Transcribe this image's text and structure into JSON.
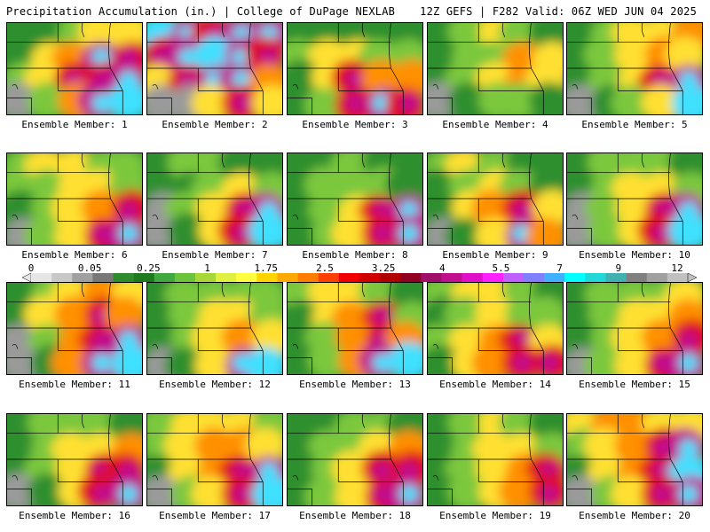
{
  "header": {
    "title": "Precipitation Accumulation (in.) | College of DuPage NEXLAB",
    "run_info": "12Z GEFS | F282 Valid: 06Z WED JUN 04 2025"
  },
  "colorbar": {
    "labels": [
      "0",
      "0.05",
      "0.25",
      "1",
      "1.75",
      "2.5",
      "3.25",
      "4",
      "5.5",
      "7",
      "9",
      "12"
    ],
    "colors": [
      "#e6e6e6",
      "#c8c8c8",
      "#a0a0a0",
      "#787878",
      "#2e8b2e",
      "#1f7a1f",
      "#3fa83f",
      "#6cc43c",
      "#a8d838",
      "#e0f040",
      "#ffff40",
      "#ffd400",
      "#ffa800",
      "#ff7d00",
      "#ff4000",
      "#f00000",
      "#d00000",
      "#b00000",
      "#900020",
      "#a0106a",
      "#c0108c",
      "#e010c8",
      "#ff20ff",
      "#c060ff",
      "#8080ff",
      "#40b0ff",
      "#00ffff",
      "#20d8d8",
      "#40b0b0",
      "#808080",
      "#a0a0a0",
      "#c0c0c0"
    ]
  },
  "members": [
    {
      "label": "Ensemble Member: 1",
      "pattern": [
        [
          1,
          1,
          2,
          3,
          3
        ],
        [
          1,
          3,
          4,
          6,
          5
        ],
        [
          2,
          3,
          5,
          5,
          6
        ],
        [
          0,
          2,
          4,
          6,
          7
        ]
      ]
    },
    {
      "label": "Ensemble Member: 2",
      "pattern": [
        [
          7,
          6,
          5,
          6,
          6
        ],
        [
          5,
          6,
          7,
          6,
          5
        ],
        [
          3,
          5,
          6,
          6,
          4
        ],
        [
          0,
          0,
          3,
          5,
          3
        ]
      ]
    },
    {
      "label": "Ensemble Member: 3",
      "pattern": [
        [
          1,
          1,
          1,
          1,
          1
        ],
        [
          2,
          3,
          3,
          2,
          2
        ],
        [
          1,
          3,
          5,
          4,
          4
        ],
        [
          1,
          2,
          5,
          6,
          5
        ]
      ]
    },
    {
      "label": "Ensemble Member: 4",
      "pattern": [
        [
          1,
          2,
          3,
          2,
          1
        ],
        [
          1,
          2,
          2,
          4,
          3
        ],
        [
          1,
          2,
          3,
          4,
          3
        ],
        [
          0,
          1,
          2,
          2,
          1
        ]
      ]
    },
    {
      "label": "Ensemble Member: 5",
      "pattern": [
        [
          1,
          2,
          3,
          3,
          4
        ],
        [
          1,
          2,
          3,
          4,
          3
        ],
        [
          1,
          2,
          3,
          5,
          6
        ],
        [
          0,
          1,
          2,
          3,
          7
        ]
      ]
    },
    {
      "label": "Ensemble Member: 6",
      "pattern": [
        [
          2,
          3,
          3,
          2,
          2
        ],
        [
          2,
          2,
          3,
          3,
          2
        ],
        [
          1,
          2,
          3,
          4,
          5
        ],
        [
          0,
          2,
          3,
          5,
          6
        ]
      ]
    },
    {
      "label": "Ensemble Member: 7",
      "pattern": [
        [
          1,
          2,
          2,
          1,
          1
        ],
        [
          1,
          1,
          2,
          3,
          2
        ],
        [
          0,
          2,
          3,
          5,
          6
        ],
        [
          0,
          1,
          3,
          5,
          7
        ]
      ]
    },
    {
      "label": "Ensemble Member: 8",
      "pattern": [
        [
          1,
          1,
          2,
          1,
          1
        ],
        [
          1,
          2,
          2,
          2,
          1
        ],
        [
          1,
          2,
          3,
          5,
          6
        ],
        [
          1,
          2,
          3,
          5,
          6
        ]
      ]
    },
    {
      "label": "Ensemble Member: 9",
      "pattern": [
        [
          2,
          3,
          2,
          1,
          1
        ],
        [
          1,
          2,
          3,
          2,
          1
        ],
        [
          1,
          3,
          4,
          5,
          3
        ],
        [
          0,
          1,
          3,
          6,
          4
        ]
      ]
    },
    {
      "label": "Ensemble Member: 10",
      "pattern": [
        [
          1,
          2,
          2,
          2,
          1
        ],
        [
          1,
          2,
          3,
          3,
          2
        ],
        [
          0,
          2,
          3,
          5,
          6
        ],
        [
          0,
          2,
          3,
          5,
          7
        ]
      ]
    },
    {
      "label": "Ensemble Member: 11",
      "pattern": [
        [
          1,
          2,
          3,
          4,
          3
        ],
        [
          1,
          3,
          4,
          5,
          4
        ],
        [
          0,
          2,
          4,
          5,
          6
        ],
        [
          0,
          1,
          4,
          6,
          7
        ]
      ]
    },
    {
      "label": "Ensemble Member: 12",
      "pattern": [
        [
          1,
          2,
          2,
          2,
          2
        ],
        [
          1,
          2,
          3,
          3,
          2
        ],
        [
          1,
          2,
          3,
          4,
          3
        ],
        [
          0,
          1,
          3,
          6,
          7
        ]
      ]
    },
    {
      "label": "Ensemble Member: 13",
      "pattern": [
        [
          2,
          3,
          3,
          2,
          1
        ],
        [
          1,
          3,
          4,
          5,
          2
        ],
        [
          1,
          2,
          4,
          5,
          4
        ],
        [
          1,
          2,
          4,
          6,
          7
        ]
      ]
    },
    {
      "label": "Ensemble Member: 14",
      "pattern": [
        [
          2,
          3,
          3,
          2,
          1
        ],
        [
          1,
          2,
          3,
          2,
          2
        ],
        [
          2,
          3,
          4,
          5,
          3
        ],
        [
          1,
          3,
          4,
          5,
          5
        ]
      ]
    },
    {
      "label": "Ensemble Member: 15",
      "pattern": [
        [
          1,
          2,
          2,
          2,
          3
        ],
        [
          1,
          2,
          3,
          3,
          4
        ],
        [
          1,
          2,
          3,
          4,
          5
        ],
        [
          0,
          2,
          3,
          5,
          6
        ]
      ]
    },
    {
      "label": "Ensemble Member: 16",
      "pattern": [
        [
          1,
          2,
          2,
          2,
          1
        ],
        [
          1,
          2,
          3,
          3,
          4
        ],
        [
          1,
          2,
          3,
          5,
          5
        ],
        [
          0,
          1,
          3,
          5,
          6
        ]
      ]
    },
    {
      "label": "Ensemble Member: 17",
      "pattern": [
        [
          2,
          3,
          3,
          3,
          2
        ],
        [
          2,
          3,
          4,
          4,
          3
        ],
        [
          1,
          3,
          4,
          5,
          6
        ],
        [
          0,
          2,
          3,
          5,
          7
        ]
      ]
    },
    {
      "label": "Ensemble Member: 18",
      "pattern": [
        [
          1,
          1,
          2,
          2,
          1
        ],
        [
          1,
          2,
          2,
          3,
          4
        ],
        [
          1,
          2,
          3,
          5,
          5
        ],
        [
          1,
          2,
          3,
          5,
          6
        ]
      ]
    },
    {
      "label": "Ensemble Member: 19",
      "pattern": [
        [
          1,
          2,
          3,
          2,
          1
        ],
        [
          1,
          2,
          3,
          3,
          2
        ],
        [
          1,
          2,
          3,
          4,
          5
        ],
        [
          1,
          2,
          3,
          4,
          5
        ]
      ]
    },
    {
      "label": "Ensemble Member: 20",
      "pattern": [
        [
          3,
          4,
          4,
          3,
          3
        ],
        [
          2,
          3,
          4,
          5,
          6
        ],
        [
          1,
          3,
          4,
          5,
          7
        ],
        [
          0,
          2,
          3,
          5,
          6
        ]
      ]
    }
  ]
}
